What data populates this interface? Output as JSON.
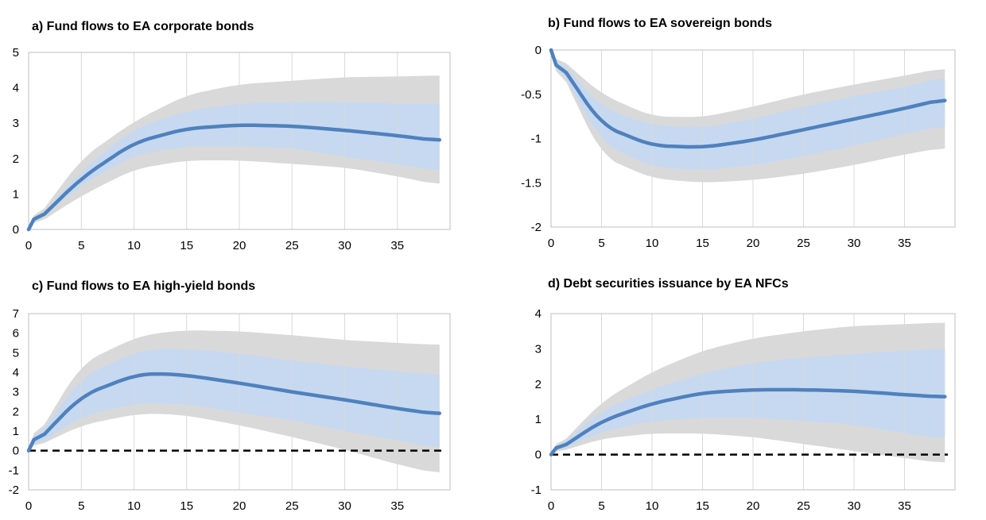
{
  "colors": {
    "band_outer": "#d9d9d9",
    "band_inner": "#c6d9f1",
    "median_line": "#4f81bd",
    "zero_line": "#000000",
    "grid": "#d9d9d9",
    "axis": "#bfbfbf"
  },
  "chart_data": [
    {
      "type": "area",
      "title": "a) Fund flows to EA corporate bonds",
      "xlabel": "",
      "ylabel": "",
      "xlim": [
        0,
        40
      ],
      "ylim": [
        0,
        5
      ],
      "xticks": [
        0,
        5,
        10,
        15,
        20,
        25,
        30,
        35
      ],
      "yticks": [
        0,
        1,
        2,
        3,
        4,
        5
      ],
      "ytick_labels": [
        "0",
        "1",
        "2",
        "3",
        "4",
        "5"
      ],
      "zero_line": false,
      "grid": "vertical",
      "x": [
        0,
        5,
        10,
        15,
        20,
        25,
        30,
        35,
        39
      ],
      "median": [
        0,
        1.45,
        2.45,
        2.85,
        2.95,
        2.92,
        2.8,
        2.65,
        2.5
      ],
      "inner_band": {
        "lower": [
          0,
          1.25,
          2.1,
          2.35,
          2.35,
          2.3,
          2.05,
          1.85,
          1.65
        ],
        "upper": [
          0,
          1.65,
          2.85,
          3.35,
          3.55,
          3.6,
          3.6,
          3.55,
          3.55
        ]
      },
      "outer_band": {
        "lower": [
          0,
          0.95,
          1.7,
          1.95,
          1.95,
          1.85,
          1.75,
          1.5,
          1.25
        ],
        "upper": [
          0,
          2.0,
          3.05,
          3.8,
          4.1,
          4.2,
          4.3,
          4.32,
          4.35
        ]
      }
    },
    {
      "type": "area",
      "title": "b) Fund flows to EA sovereign bonds",
      "xlabel": "",
      "ylabel": "",
      "xlim": [
        0,
        40
      ],
      "ylim": [
        -2,
        0
      ],
      "xticks": [
        0,
        5,
        10,
        15,
        20,
        25,
        30,
        35
      ],
      "yticks": [
        0,
        -0.5,
        -1,
        -1.5,
        -2
      ],
      "ytick_labels": [
        "0",
        "-0.5",
        "-1",
        "-1.5",
        "-2"
      ],
      "zero_line": false,
      "grid": "vertical",
      "x": [
        0,
        5,
        10,
        15,
        20,
        25,
        30,
        35,
        39
      ],
      "median": [
        0,
        -0.85,
        -1.08,
        -1.1,
        -1.02,
        -0.9,
        -0.78,
        -0.66,
        -0.55
      ],
      "inner_band": {
        "lower": [
          0,
          -1.05,
          -1.32,
          -1.36,
          -1.3,
          -1.2,
          -1.08,
          -0.95,
          -0.85
        ],
        "upper": [
          0,
          -0.65,
          -0.85,
          -0.88,
          -0.78,
          -0.64,
          -0.52,
          -0.42,
          -0.3
        ]
      },
      "outer_band": {
        "lower": [
          0,
          -1.2,
          -1.45,
          -1.5,
          -1.47,
          -1.4,
          -1.3,
          -1.18,
          -1.1
        ],
        "upper": [
          0,
          -0.5,
          -0.75,
          -0.76,
          -0.64,
          -0.5,
          -0.39,
          -0.29,
          -0.2
        ]
      }
    },
    {
      "type": "area",
      "title": "c) Fund flows to EA high-yield bonds",
      "xlabel": "",
      "ylabel": "",
      "xlim": [
        0,
        40
      ],
      "ylim": [
        -2,
        7
      ],
      "xticks": [
        0,
        5,
        10,
        15,
        20,
        25,
        30,
        35
      ],
      "yticks": [
        -2,
        -1,
        0,
        1,
        2,
        3,
        4,
        5,
        6,
        7
      ],
      "ytick_labels": [
        "-2",
        "-1",
        "0",
        "1",
        "2",
        "3",
        "4",
        "5",
        "6",
        "7"
      ],
      "zero_line": true,
      "grid": "vertical",
      "x": [
        0,
        5,
        10,
        12,
        15,
        20,
        25,
        30,
        35,
        39
      ],
      "median": [
        0,
        2.8,
        3.85,
        3.95,
        3.85,
        3.45,
        3.0,
        2.6,
        2.15,
        1.85
      ],
      "inner_band": {
        "lower": [
          0,
          1.75,
          2.4,
          2.45,
          2.35,
          1.95,
          1.55,
          1.0,
          0.55,
          0.1
        ],
        "upper": [
          0,
          3.75,
          5.0,
          5.2,
          5.2,
          4.95,
          4.6,
          4.3,
          4.05,
          3.85
        ]
      },
      "outer_band": {
        "lower": [
          0,
          1.3,
          1.85,
          1.9,
          1.8,
          1.3,
          0.7,
          0.05,
          -0.7,
          -1.2
        ],
        "upper": [
          0,
          4.45,
          5.75,
          6.0,
          6.15,
          6.1,
          5.9,
          5.65,
          5.5,
          5.4
        ]
      }
    },
    {
      "type": "area",
      "title": "d) Debt securities issuance by EA NFCs",
      "xlabel": "",
      "ylabel": "",
      "xlim": [
        0,
        40
      ],
      "ylim": [
        -1,
        4
      ],
      "xticks": [
        0,
        5,
        10,
        15,
        20,
        25,
        30,
        35
      ],
      "yticks": [
        -1,
        0,
        1,
        2,
        3,
        4
      ],
      "ytick_labels": [
        "-1",
        "0",
        "1",
        "2",
        "3",
        "4"
      ],
      "zero_line": true,
      "grid": "vertical",
      "x": [
        0,
        5,
        10,
        15,
        20,
        25,
        30,
        35,
        39
      ],
      "median": [
        0,
        0.95,
        1.45,
        1.75,
        1.84,
        1.84,
        1.8,
        1.7,
        1.63
      ],
      "inner_band": {
        "lower": [
          0,
          0.65,
          0.95,
          1.05,
          1.05,
          0.95,
          0.85,
          0.6,
          0.45
        ],
        "upper": [
          0,
          1.25,
          1.85,
          2.3,
          2.6,
          2.75,
          2.85,
          2.95,
          3.0
        ]
      },
      "outer_band": {
        "lower": [
          0,
          0.45,
          0.6,
          0.6,
          0.5,
          0.3,
          0.1,
          -0.1,
          -0.25
        ],
        "upper": [
          0,
          1.5,
          2.35,
          2.95,
          3.3,
          3.5,
          3.65,
          3.7,
          3.75
        ]
      }
    }
  ]
}
